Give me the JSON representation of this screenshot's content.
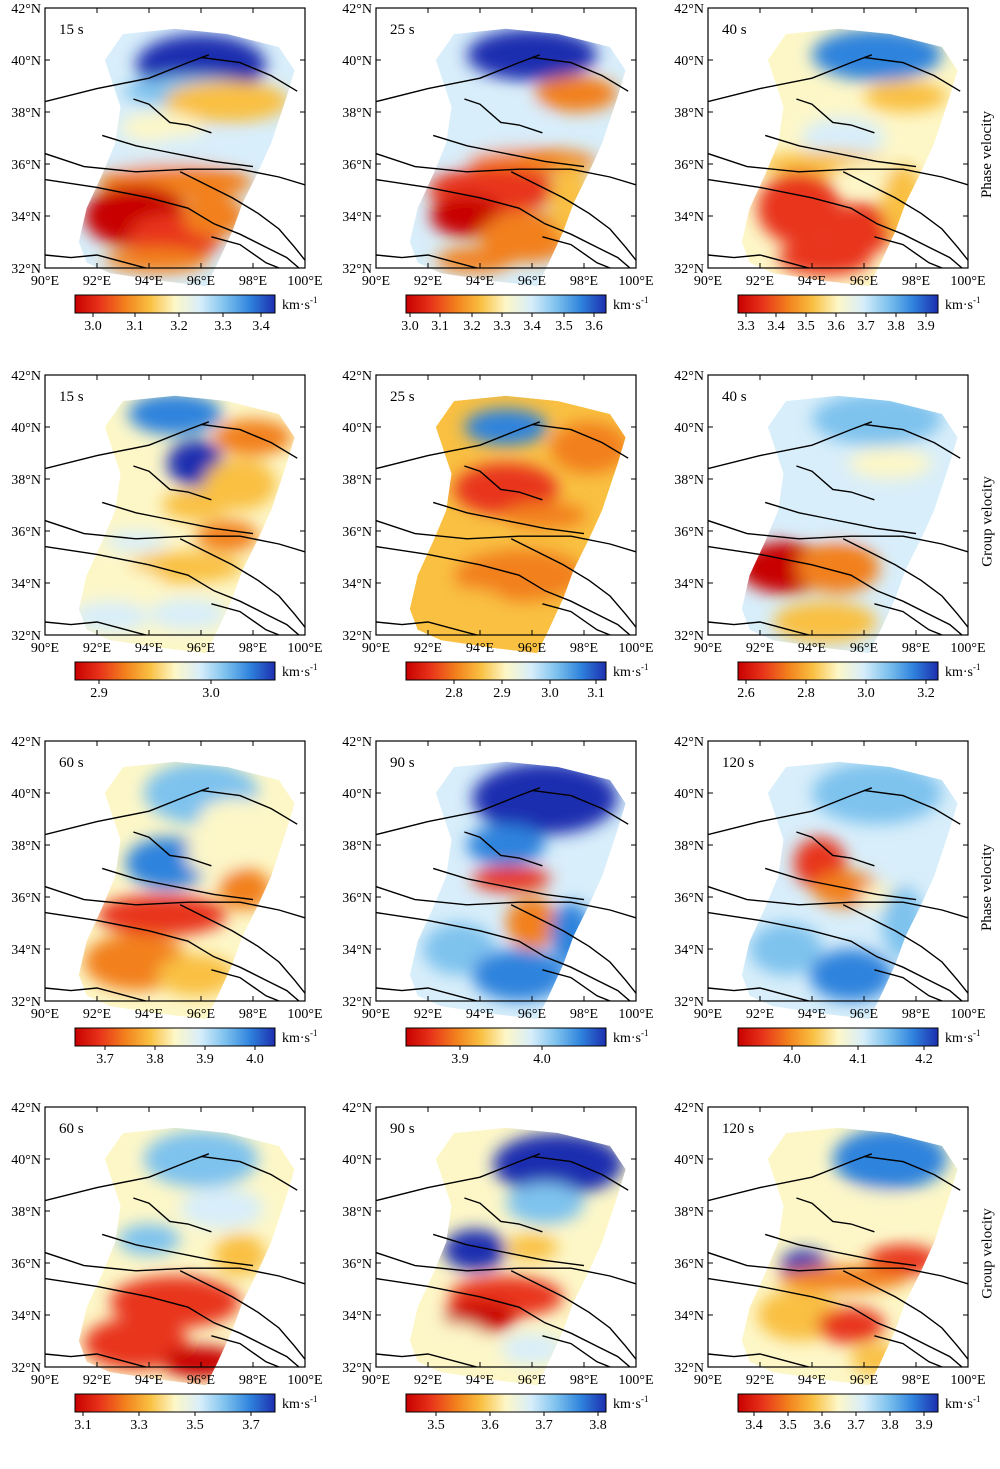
{
  "figure": {
    "x_ticks": [
      "90°E",
      "92°E",
      "94°E",
      "96°E",
      "98°E",
      "100°E"
    ],
    "y_ticks": [
      "42°N",
      "40°N",
      "38°N",
      "36°N",
      "34°N",
      "32°N"
    ],
    "unit_label": "km·s",
    "unit_exponent": "-1",
    "colormap": [
      "#c80000",
      "#e8341a",
      "#f2801c",
      "#f9c042",
      "#fdf7c8",
      "#d8eefa",
      "#7ec2ee",
      "#2f83dd",
      "#1d2fb0"
    ],
    "rows": [
      {
        "label": "Phase velocity",
        "panels": [
          {
            "period": "15 s",
            "scale_ticks": [
              "3.0",
              "3.1",
              "3.2",
              "3.3",
              "3.4"
            ],
            "tick_pos": [
              0.09,
              0.3,
              0.52,
              0.74,
              0.93
            ]
          },
          {
            "period": "25 s",
            "scale_ticks": [
              "3.0",
              "3.1",
              "3.2",
              "3.3",
              "3.4",
              "3.5",
              "3.6"
            ],
            "tick_pos": [
              0.02,
              0.17,
              0.33,
              0.48,
              0.63,
              0.79,
              0.94
            ]
          },
          {
            "period": "40 s",
            "scale_ticks": [
              "3.3",
              "3.4",
              "3.5",
              "3.6",
              "3.7",
              "3.8",
              "3.9"
            ],
            "tick_pos": [
              0.04,
              0.19,
              0.34,
              0.49,
              0.64,
              0.79,
              0.94
            ]
          }
        ]
      },
      {
        "label": "Group velocity",
        "panels": [
          {
            "period": "15 s",
            "scale_ticks": [
              "2.9",
              "3.0"
            ],
            "tick_pos": [
              0.12,
              0.68
            ]
          },
          {
            "period": "25 s",
            "scale_ticks": [
              "2.8",
              "2.9",
              "3.0",
              "3.1"
            ],
            "tick_pos": [
              0.24,
              0.48,
              0.72,
              0.95
            ]
          },
          {
            "period": "40 s",
            "scale_ticks": [
              "2.6",
              "2.8",
              "3.0",
              "3.2"
            ],
            "tick_pos": [
              0.04,
              0.34,
              0.64,
              0.94
            ]
          }
        ]
      },
      {
        "label": "Phase velocity",
        "panels": [
          {
            "period": "60 s",
            "scale_ticks": [
              "3.7",
              "3.8",
              "3.9",
              "4.0"
            ],
            "tick_pos": [
              0.15,
              0.4,
              0.65,
              0.9
            ]
          },
          {
            "period": "90 s",
            "scale_ticks": [
              "3.9",
              "4.0"
            ],
            "tick_pos": [
              0.27,
              0.68
            ]
          },
          {
            "period": "120 s",
            "scale_ticks": [
              "4.0",
              "4.1",
              "4.2"
            ],
            "tick_pos": [
              0.27,
              0.6,
              0.93
            ]
          }
        ]
      },
      {
        "label": "Group velocity",
        "panels": [
          {
            "period": "60 s",
            "scale_ticks": [
              "3.1",
              "3.3",
              "3.5",
              "3.7"
            ],
            "tick_pos": [
              0.04,
              0.32,
              0.6,
              0.88
            ]
          },
          {
            "period": "90 s",
            "scale_ticks": [
              "3.5",
              "3.6",
              "3.7",
              "3.8"
            ],
            "tick_pos": [
              0.15,
              0.42,
              0.69,
              0.96
            ]
          },
          {
            "period": "120 s",
            "scale_ticks": [
              "3.4",
              "3.5",
              "3.6",
              "3.7",
              "3.8",
              "3.9"
            ],
            "tick_pos": [
              0.08,
              0.25,
              0.42,
              0.59,
              0.76,
              0.93
            ]
          }
        ]
      }
    ]
  }
}
